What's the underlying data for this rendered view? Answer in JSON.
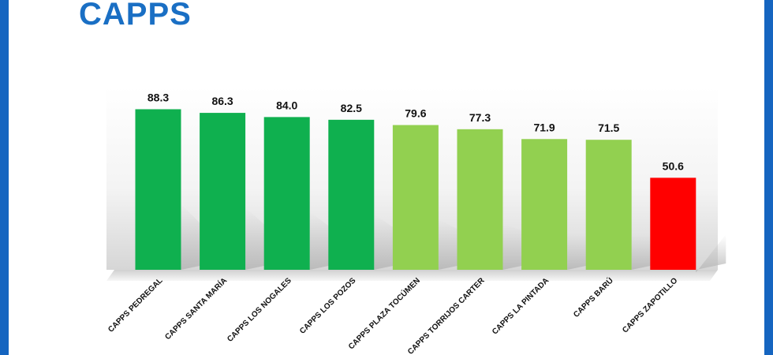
{
  "slide": {
    "title": "CAPPS",
    "frame_color": "#1565c0"
  },
  "chart_data": {
    "type": "bar",
    "categories": [
      "CAPPS PEDREGAL",
      "CAPPS SANTA MARÍA",
      "CAPPS LOS NOGALES",
      "CAPPS LOS POZOS",
      "CAPPS PLAZA TOCÚMEN",
      "CAPPS TORRIJOS CARTER",
      "CAPPS LA PINTADA",
      "CAPPS BARÚ",
      "CAPPS ZAPOTILLO"
    ],
    "values": [
      88.3,
      86.3,
      84.0,
      82.5,
      79.6,
      77.3,
      71.9,
      71.5,
      50.6
    ],
    "value_labels": [
      "88.3",
      "86.3",
      "84.0",
      "82.5",
      "79.6",
      "77.3",
      "71.9",
      "71.5",
      "50.6"
    ],
    "bar_colors": [
      "#0fb04f",
      "#0fb04f",
      "#0fb04f",
      "#0fb04f",
      "#92d050",
      "#92d050",
      "#92d050",
      "#92d050",
      "#ff0000"
    ],
    "ylim": [
      0,
      100
    ],
    "grid": false,
    "legend": "none"
  }
}
